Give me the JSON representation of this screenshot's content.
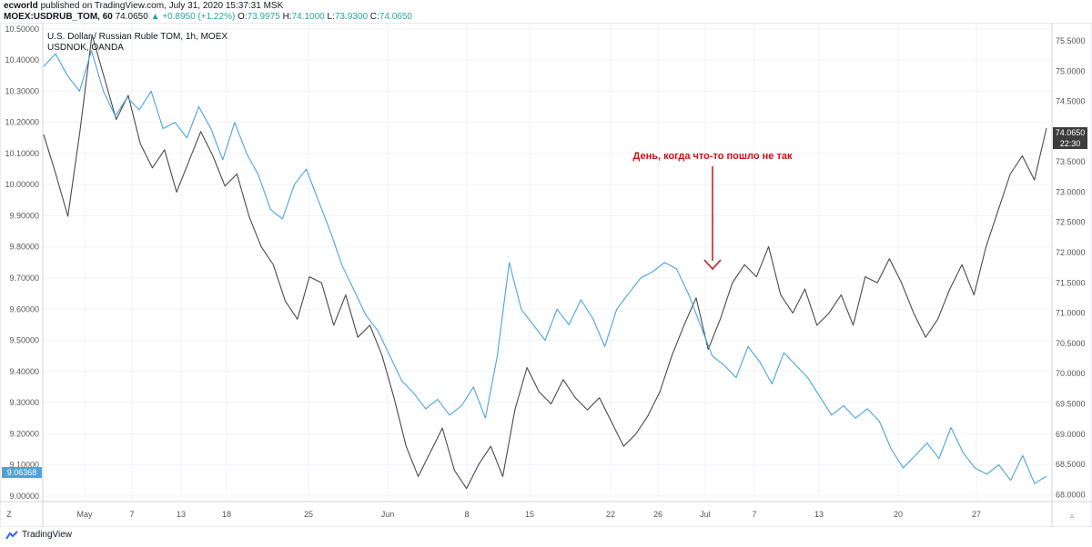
{
  "header": {
    "author": "ecworld",
    "published": "published on TradingView.com, July 31, 2020 15:37:31 MSK",
    "symbol": "MOEX:USDRUB_TOM, 60",
    "last": "74.0650",
    "change": "▲ +0.8950 (+1.22%)",
    "o_label": "O:",
    "o_value": "73.9975",
    "h_label": "H:",
    "h_value": "74.1000",
    "l_label": "L:",
    "l_value": "73.9300",
    "c_label": "C:",
    "c_value": "74.0650"
  },
  "legend": {
    "main": "U.S. Dollar / Russian Ruble TOM, 1h, MOEX",
    "overlay": "USDNOK, OANDA"
  },
  "annotation": "День, когда что-то пошло не так",
  "footer": {
    "brand": "TradingView"
  },
  "colors": {
    "usdrub": "#4a4a4a",
    "usdnok": "#4aa3df",
    "annotation": "#cc1111",
    "axis_text": "#555555",
    "grid": "#f0f3fa"
  },
  "chart_data": {
    "type": "line",
    "x_ticks": [
      "Z",
      "May",
      "7",
      "13",
      "18",
      "25",
      "Jun",
      "8",
      "15",
      "22",
      "26",
      "Jul",
      "7",
      "13",
      "20",
      "27"
    ],
    "left_axis": {
      "ticks": [
        "10.50000",
        "10.40000",
        "10.30000",
        "10.20000",
        "10.10000",
        "10.00000",
        "9.90000",
        "9.80000",
        "9.70000",
        "9.60000",
        "9.50000",
        "9.40000",
        "9.30000",
        "9.20000",
        "9.10000",
        "9.00000"
      ],
      "range": [
        8.985,
        10.52
      ],
      "last_label": "9.06368"
    },
    "right_axis": {
      "ticks": [
        "75.5000",
        "75.0000",
        "74.5000",
        "74.0000",
        "73.5000",
        "73.0000",
        "72.5000",
        "72.0000",
        "71.5000",
        "71.0000",
        "70.5000",
        "70.0000",
        "69.5000",
        "69.0000",
        "68.5000",
        "68.0000"
      ],
      "range": [
        67.9,
        75.8
      ],
      "last_label": "74.0650",
      "time_label": "22:30"
    },
    "series": [
      {
        "name": "USDRUB_TOM",
        "axis": "right",
        "color": "#4a4a4a",
        "values": [
          73.95,
          73.3,
          72.6,
          74.0,
          75.6,
          74.9,
          74.2,
          74.6,
          73.8,
          73.4,
          73.7,
          73.0,
          73.5,
          74.0,
          73.6,
          73.1,
          73.3,
          72.6,
          72.1,
          71.8,
          71.2,
          70.9,
          71.6,
          71.5,
          70.8,
          71.3,
          70.6,
          70.8,
          70.3,
          69.6,
          68.8,
          68.3,
          68.7,
          69.1,
          68.4,
          68.1,
          68.5,
          68.8,
          68.3,
          69.4,
          70.1,
          69.7,
          69.5,
          69.9,
          69.6,
          69.4,
          69.6,
          69.2,
          68.8,
          69.0,
          69.3,
          69.7,
          70.3,
          70.8,
          71.25,
          70.4,
          70.9,
          71.5,
          71.8,
          71.6,
          72.1,
          71.3,
          71.0,
          71.4,
          70.8,
          71.0,
          71.3,
          70.8,
          71.6,
          71.5,
          71.9,
          71.5,
          71.0,
          70.6,
          70.9,
          71.4,
          71.8,
          71.3,
          72.1,
          72.7,
          73.3,
          73.6,
          73.2,
          74.06
        ]
      },
      {
        "name": "USDNOK",
        "axis": "left",
        "color": "#4aa3df",
        "values": [
          10.38,
          10.42,
          10.35,
          10.3,
          10.43,
          10.3,
          10.22,
          10.28,
          10.24,
          10.3,
          10.18,
          10.2,
          10.15,
          10.25,
          10.18,
          10.08,
          10.2,
          10.1,
          10.03,
          9.92,
          9.89,
          10.0,
          10.05,
          9.95,
          9.85,
          9.74,
          9.66,
          9.58,
          9.53,
          9.45,
          9.37,
          9.33,
          9.28,
          9.31,
          9.26,
          9.29,
          9.35,
          9.25,
          9.45,
          9.75,
          9.6,
          9.55,
          9.5,
          9.6,
          9.55,
          9.63,
          9.57,
          9.48,
          9.6,
          9.65,
          9.7,
          9.72,
          9.75,
          9.73,
          9.65,
          9.55,
          9.45,
          9.42,
          9.38,
          9.48,
          9.43,
          9.36,
          9.46,
          9.42,
          9.38,
          9.32,
          9.26,
          9.29,
          9.25,
          9.28,
          9.24,
          9.15,
          9.09,
          9.13,
          9.17,
          9.12,
          9.22,
          9.14,
          9.09,
          9.07,
          9.1,
          9.05,
          9.13,
          9.04,
          9.06368
        ]
      }
    ]
  }
}
